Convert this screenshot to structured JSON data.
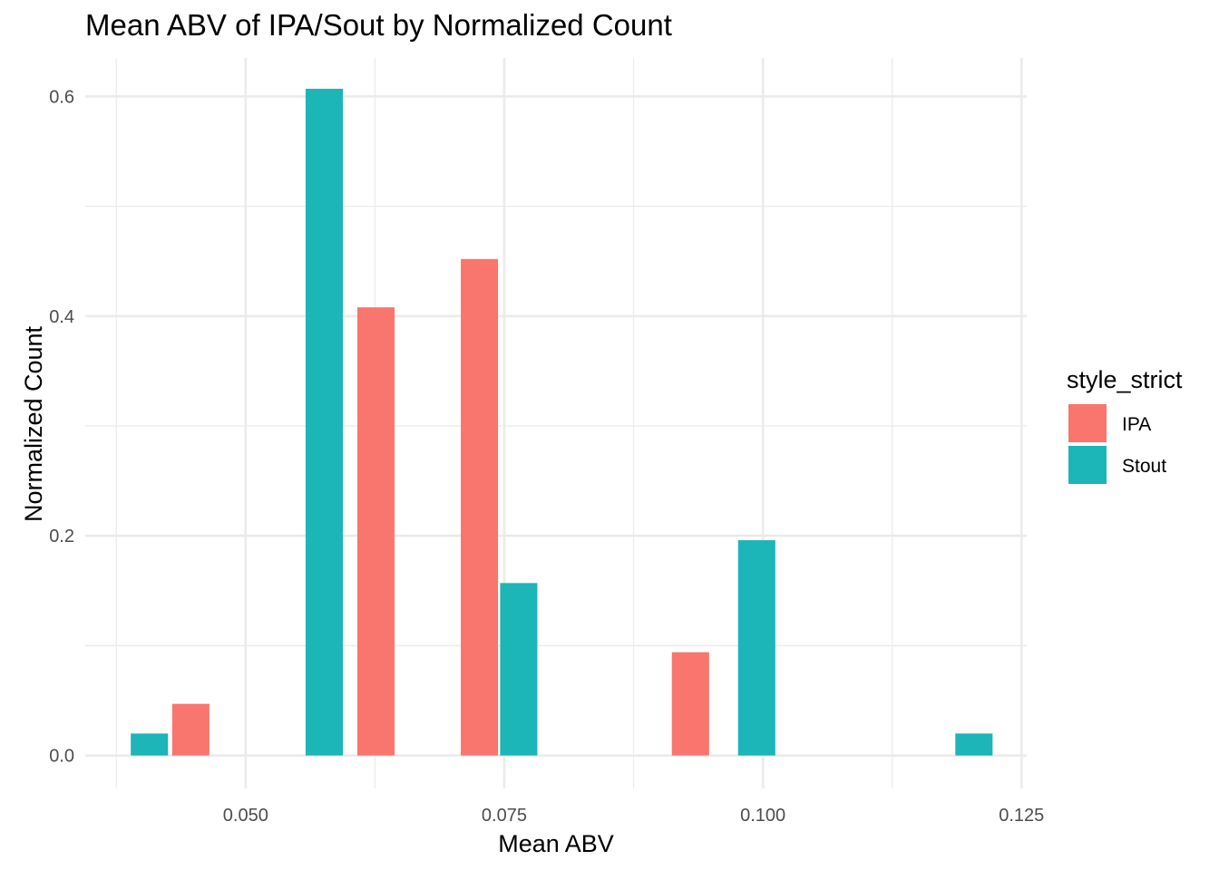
{
  "chart_data": {
    "type": "bar",
    "title": "Mean ABV of IPA/Sout by Normalized Count",
    "xlabel": "Mean ABV",
    "ylabel": "Normalized Count",
    "xlim": [
      0.0345,
      0.1255
    ],
    "ylim": [
      -0.03,
      0.635
    ],
    "x_ticks": [
      0.05,
      0.075,
      0.1,
      0.125
    ],
    "x_tick_labels": [
      "0.050",
      "0.075",
      "0.100",
      "0.125"
    ],
    "x_minor_ticks": [
      0.0375,
      0.0625,
      0.0875,
      0.1125
    ],
    "y_ticks": [
      0.0,
      0.2,
      0.4,
      0.6
    ],
    "y_tick_labels": [
      "0.0",
      "0.2",
      "0.4",
      "0.6"
    ],
    "y_minor_ticks": [
      0.1,
      0.3,
      0.5
    ],
    "bar_width": 0.0036,
    "grid": true,
    "legend": {
      "title": "style_strict",
      "position": "right",
      "entries": [
        "IPA",
        "Stout"
      ]
    },
    "series": [
      {
        "name": "IPA",
        "color": "#F8766D",
        "points": [
          {
            "x": 0.0447,
            "y": 0.047
          },
          {
            "x": 0.0626,
            "y": 0.408
          },
          {
            "x": 0.0726,
            "y": 0.452
          },
          {
            "x": 0.093,
            "y": 0.094
          }
        ]
      },
      {
        "name": "Stout",
        "color": "#1CB5B8",
        "points": [
          {
            "x": 0.0407,
            "y": 0.02
          },
          {
            "x": 0.0576,
            "y": 0.607
          },
          {
            "x": 0.0764,
            "y": 0.157
          },
          {
            "x": 0.0994,
            "y": 0.196
          },
          {
            "x": 0.1204,
            "y": 0.02
          }
        ]
      }
    ]
  }
}
